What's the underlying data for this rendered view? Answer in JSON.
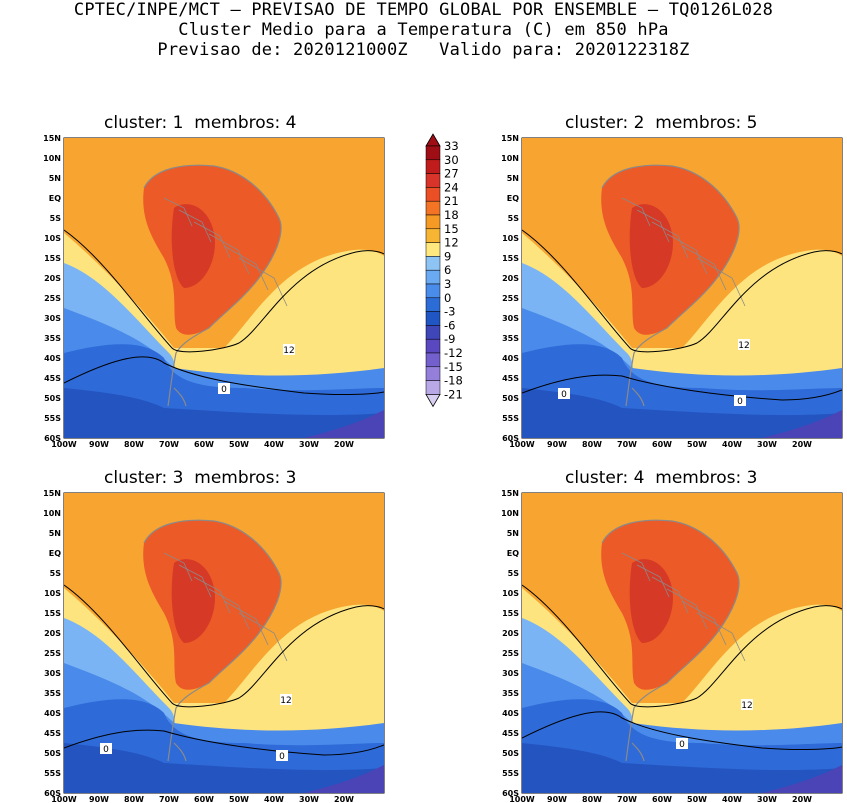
{
  "header": {
    "line1": "CPTEC/INPE/MCT – PREVISAO DE TEMPO GLOBAL POR ENSEMBLE – TQ0126L028",
    "line2": "Cluster Medio para a Temperatura (C) em 850 hPa",
    "line3": "Previsao de: 2020121000Z   Valido para: 2020122318Z"
  },
  "panels": [
    {
      "title": "cluster: 1  membros: 4",
      "contour_labels": [
        "12",
        "0"
      ]
    },
    {
      "title": "cluster: 2  membros: 5",
      "contour_labels": [
        "12",
        "0",
        "0"
      ]
    },
    {
      "title": "cluster: 3  membros: 3",
      "contour_labels": [
        "12",
        "0",
        "0"
      ]
    },
    {
      "title": "cluster: 4  membros: 3",
      "contour_labels": [
        "12",
        "0"
      ]
    }
  ],
  "axes": {
    "lat_labels": [
      "15N",
      "10N",
      "5N",
      "EQ",
      "5S",
      "10S",
      "15S",
      "20S",
      "25S",
      "30S",
      "35S",
      "40S",
      "45S",
      "50S",
      "55S",
      "60S"
    ],
    "lon_labels": [
      "100W",
      "90W",
      "80W",
      "70W",
      "60W",
      "50W",
      "40W",
      "30W",
      "20W"
    ]
  },
  "colorbar": {
    "labels": [
      "33",
      "30",
      "27",
      "24",
      "21",
      "18",
      "15",
      "12",
      "9",
      "6",
      "3",
      "0",
      "-3",
      "-6",
      "-9",
      "-12",
      "-15",
      "-18",
      "-21"
    ],
    "colors": [
      "#9e0e14",
      "#c01c1c",
      "#d8342a",
      "#ea4f26",
      "#f27424",
      "#f59a24",
      "#f7b534",
      "#ffe87e",
      "#8ec4f4",
      "#6aaaf2",
      "#4a8cea",
      "#2c6cd6",
      "#2056c4",
      "#3e46b8",
      "#5a48c0",
      "#7460cc",
      "#9480da",
      "#b8a8e6",
      "#d8cef2"
    ]
  },
  "map_style": {
    "c_orange": "#f7a530",
    "c_light_orange": "#f9bc40",
    "c_yellow": "#fde47e",
    "c_red": "#ec5a28",
    "c_dark_red": "#d63a26",
    "c_light_blue": "#7ab4f4",
    "c_mid_blue": "#4a8aea",
    "c_blue": "#2e6ad8",
    "c_dark_blue": "#2454c0",
    "c_purple": "#4a44b6",
    "c_border": "#8a8a8a"
  }
}
